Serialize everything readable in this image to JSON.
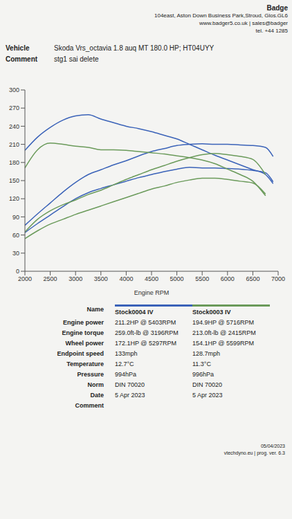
{
  "header": {
    "lines": [
      "Badge",
      "104east, Aston Down Business Park,Stroud, Glos.GL6",
      "www.badger5.co.uk | sales@badger",
      "tel. +44 1285"
    ]
  },
  "vehicle": {
    "rows": [
      [
        "Vehicle",
        "Skoda Vrs_octavia 1.8 auq MT 180.0 HP; HT04UYY"
      ],
      [
        "Comment",
        "stg1 sai delete"
      ]
    ]
  },
  "chart_data": {
    "type": "line",
    "x": [
      2000,
      2250,
      2500,
      2750,
      3000,
      3250,
      3500,
      3750,
      4000,
      4250,
      4500,
      4750,
      5000,
      5250,
      5500,
      5750,
      6000,
      6250,
      6500,
      6750,
      6900
    ],
    "xlim": [
      2000,
      7000
    ],
    "xticks": [
      2000,
      2500,
      3000,
      3500,
      4000,
      4500,
      5000,
      5500,
      6000,
      6500,
      7000
    ],
    "xlabel": "Engine RPM",
    "ylim": [
      0,
      300
    ],
    "yticks": [
      0,
      30,
      60,
      90,
      120,
      150,
      180,
      210,
      240,
      270,
      300
    ],
    "grid": false,
    "series": [
      {
        "name": "Engine torque",
        "run": "Stock0004 IV",
        "color": "#3a62b8",
        "values": [
          200,
          222,
          238,
          250,
          257,
          259,
          252,
          246,
          240,
          236,
          231,
          225,
          219,
          210,
          201,
          192,
          184,
          176,
          168,
          160,
          145
        ]
      },
      {
        "name": "Engine power",
        "run": "Stock0004 IV",
        "color": "#3a62b8",
        "values": [
          76,
          95,
          113,
          131,
          147,
          160,
          168,
          176,
          183,
          191,
          198,
          203,
          208,
          210,
          211,
          210,
          210,
          209,
          208,
          205,
          190
        ]
      },
      {
        "name": "Wheel power",
        "run": "Stock0004 IV",
        "color": "#3a62b8",
        "values": [
          64,
          79,
          93,
          107,
          120,
          130,
          137,
          143,
          149,
          155,
          160,
          165,
          169,
          172,
          171,
          171,
          170,
          169,
          167,
          163,
          148
        ]
      },
      {
        "name": "Engine torque",
        "run": "Stock0003 IV",
        "color": "#6a9a5a",
        "values": [
          171,
          201,
          212,
          210,
          207,
          205,
          201,
          201,
          200,
          198,
          196,
          194,
          191,
          188,
          184,
          178,
          169,
          160,
          149,
          125,
          null
        ]
      },
      {
        "name": "Engine power",
        "run": "Stock0003 IV",
        "color": "#6a9a5a",
        "values": [
          65,
          86,
          100,
          110,
          118,
          127,
          134,
          143,
          152,
          160,
          168,
          175,
          182,
          188,
          193,
          195,
          193,
          190,
          185,
          160,
          null
        ]
      },
      {
        "name": "Wheel power",
        "run": "Stock0003 IV",
        "color": "#6a9a5a",
        "values": [
          54,
          67,
          78,
          86,
          94,
          101,
          108,
          115,
          122,
          129,
          136,
          141,
          147,
          151,
          154,
          154,
          152,
          149,
          146,
          128,
          null
        ]
      }
    ]
  },
  "table": {
    "columns": [
      {
        "name": "Stock0004 IV",
        "color": "#3a62b8"
      },
      {
        "name": "Stock0003 IV",
        "color": "#6a9a5a"
      }
    ],
    "name_label": "Name",
    "rows": [
      [
        "Engine power",
        "211.2HP @ 5403RPM",
        "194.9HP @ 5716RPM"
      ],
      [
        "Engine torque",
        "259.0ft-lb @ 3196RPM",
        "213.0ft-lb @ 2415RPM"
      ],
      [
        "Wheel power",
        "172.1HP @ 5297RPM",
        "154.1HP @ 5599RPM"
      ],
      [
        "Endpoint speed",
        "133mph",
        "128.7mph"
      ],
      [
        "Temperature",
        "12.7°C",
        "11.3°C"
      ],
      [
        "Pressure",
        "994hPa",
        "996hPa"
      ],
      [
        "Norm",
        "DIN 70020",
        "DIN 70020"
      ],
      [
        "Date",
        "5 Apr 2023",
        "5 Apr 2023"
      ],
      [
        "Comment"
      ]
    ]
  },
  "footer": {
    "lines": [
      "05/04/2023",
      "vtechdyno.eu | prog. ver. 6.3"
    ]
  }
}
